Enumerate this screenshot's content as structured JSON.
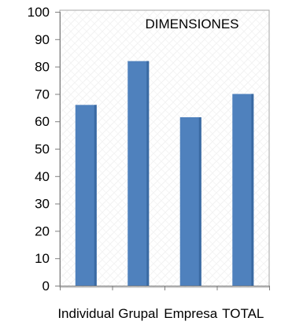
{
  "chart_data": {
    "type": "bar",
    "title": "DIMENSIONES",
    "categories": [
      "Individual",
      "Grupal",
      "Empresa",
      "TOTAL"
    ],
    "values": [
      66,
      82,
      61.5,
      70
    ],
    "ylim": [
      0,
      100
    ],
    "yticks": [
      0,
      10,
      20,
      30,
      40,
      50,
      60,
      70,
      80,
      90,
      100
    ],
    "xlabel": "",
    "ylabel": "",
    "grid": false,
    "legend": "none",
    "colors": {
      "bar_fill": "#4f81bd",
      "bar_shadow": "#3a6aa3",
      "axis": "#808080",
      "plot_border": "#a6a6a6",
      "background": "#ffffff",
      "plot_pattern": "#f3f3f3"
    }
  }
}
